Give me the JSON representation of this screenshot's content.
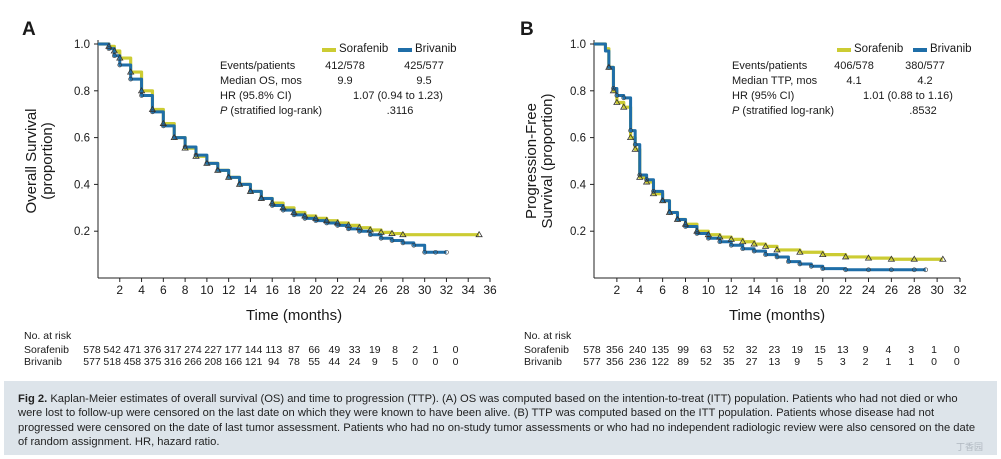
{
  "figure": {
    "caption_label": "Fig 2.",
    "caption_text": "Kaplan-Meier estimates of overall survival (OS) and time to progression (TTP). (A) OS was computed based on the intention-to-treat (ITT) population. Patients who had not died or who were lost to follow-up were censored on the last date on which they were known to have been alive. (B) TTP was computed based on the ITT population. Patients whose disease had not progressed were censored on the date of last tumor assessment. Patients who had no on-study tumor assessments or who had no independent radiologic review were also censored on the date of random assignment. HR, hazard ratio.",
    "colors": {
      "sorafenib": "#cccc33",
      "brivanib": "#1f6ea8",
      "axis": "#222222"
    }
  },
  "chart_data": [
    {
      "panel": "A",
      "type": "line",
      "ylabel": "Overall Survival (proportion)",
      "xlabel": "Time (months)",
      "xlim": [
        0,
        36
      ],
      "ylim": [
        0,
        1.0
      ],
      "xticks": [
        2,
        4,
        6,
        8,
        10,
        12,
        14,
        16,
        18,
        20,
        22,
        24,
        26,
        28,
        30,
        32,
        34,
        36
      ],
      "yticks": [
        0.2,
        0.4,
        0.6,
        0.8,
        1.0
      ],
      "legend": [
        "Sorafenib",
        "Brivanib"
      ],
      "stats": {
        "row_labels": [
          "Events/patients",
          "Median OS, mos",
          "HR (95.8% CI)",
          "P (stratified log-rank)"
        ],
        "events_sorafenib": "412/578",
        "events_brivanib": "425/577",
        "median_sorafenib": "9.9",
        "median_brivanib": "9.5",
        "hr": "1.07 (0.94 to 1.23)",
        "p": ".3116"
      },
      "series": [
        {
          "name": "Sorafenib",
          "x": [
            0,
            0.5,
            1,
            1.5,
            2,
            3,
            4,
            5,
            6,
            7,
            8,
            9,
            10,
            11,
            12,
            13,
            14,
            15,
            16,
            17,
            18,
            19,
            20,
            21,
            22,
            23,
            24,
            25,
            26,
            27,
            28,
            35
          ],
          "y": [
            1.0,
            1.0,
            0.99,
            0.97,
            0.94,
            0.88,
            0.8,
            0.72,
            0.66,
            0.6,
            0.555,
            0.52,
            0.49,
            0.46,
            0.43,
            0.4,
            0.37,
            0.34,
            0.32,
            0.3,
            0.28,
            0.265,
            0.255,
            0.245,
            0.235,
            0.225,
            0.215,
            0.205,
            0.195,
            0.19,
            0.185,
            0.185
          ]
        },
        {
          "name": "Brivanib",
          "x": [
            0,
            0.5,
            1,
            1.5,
            2,
            3,
            4,
            5,
            6,
            7,
            8,
            9,
            10,
            11,
            12,
            13,
            14,
            15,
            16,
            17,
            18,
            19,
            20,
            21,
            22,
            23,
            24,
            25,
            26,
            27,
            28,
            29,
            30,
            31,
            32
          ],
          "y": [
            1.0,
            1.0,
            0.98,
            0.95,
            0.91,
            0.85,
            0.78,
            0.71,
            0.65,
            0.6,
            0.56,
            0.525,
            0.49,
            0.46,
            0.43,
            0.4,
            0.37,
            0.34,
            0.31,
            0.29,
            0.27,
            0.255,
            0.245,
            0.235,
            0.225,
            0.21,
            0.2,
            0.185,
            0.17,
            0.16,
            0.15,
            0.14,
            0.11,
            0.11,
            0.11
          ]
        }
      ],
      "at_risk": {
        "header": "No. at risk",
        "rows": [
          {
            "name": "Sorafenib",
            "values": [
              "578",
              "542",
              "471",
              "376",
              "317",
              "274",
              "227",
              "177",
              "144",
              "113",
              "87",
              "66",
              "49",
              "33",
              "19",
              "8",
              "2",
              "1",
              "0"
            ]
          },
          {
            "name": "Brivanib",
            "values": [
              "577",
              "518",
              "458",
              "375",
              "316",
              "266",
              "208",
              "166",
              "121",
              "94",
              "78",
              "55",
              "44",
              "24",
              "9",
              "5",
              "0",
              "0",
              "0"
            ]
          }
        ]
      }
    },
    {
      "panel": "B",
      "type": "line",
      "ylabel": "Progression-Free Survival (proportion)",
      "xlabel": "Time (months)",
      "xlim": [
        0,
        32
      ],
      "ylim": [
        0,
        1.0
      ],
      "xticks": [
        2,
        4,
        6,
        8,
        10,
        12,
        14,
        16,
        18,
        20,
        22,
        24,
        26,
        28,
        30,
        32
      ],
      "yticks": [
        0.2,
        0.4,
        0.6,
        0.8,
        1.0
      ],
      "legend": [
        "Sorafenib",
        "Brivanib"
      ],
      "stats": {
        "row_labels": [
          "Events/patients",
          "Median TTP, mos",
          "HR (95% CI)",
          "P (stratified log-rank)"
        ],
        "events_sorafenib": "406/578",
        "events_brivanib": "380/577",
        "median_sorafenib": "4.1",
        "median_brivanib": "4.2",
        "hr": "1.01 (0.88 to 1.16)",
        "p": ".8532"
      },
      "series": [
        {
          "name": "Sorafenib",
          "x": [
            0,
            1,
            1.3,
            1.7,
            2,
            2.6,
            3.2,
            3.6,
            4,
            4.6,
            5.2,
            6,
            6.6,
            7.3,
            8,
            9,
            10,
            11,
            12,
            13,
            14,
            15,
            16,
            18,
            20,
            22,
            24,
            26,
            28,
            30.5
          ],
          "y": [
            1.0,
            0.98,
            0.9,
            0.8,
            0.75,
            0.73,
            0.6,
            0.55,
            0.43,
            0.41,
            0.36,
            0.33,
            0.28,
            0.25,
            0.23,
            0.2,
            0.185,
            0.175,
            0.165,
            0.155,
            0.145,
            0.135,
            0.12,
            0.11,
            0.1,
            0.09,
            0.085,
            0.08,
            0.08,
            0.08
          ]
        },
        {
          "name": "Brivanib",
          "x": [
            0,
            1,
            1.3,
            1.7,
            2,
            2.6,
            3.2,
            3.6,
            4,
            4.6,
            5.2,
            6,
            6.6,
            7.3,
            8,
            9,
            10,
            11,
            12,
            13,
            14,
            15,
            16,
            17,
            18,
            19,
            20,
            22,
            24,
            26,
            28,
            29
          ],
          "y": [
            1.0,
            0.97,
            0.9,
            0.81,
            0.78,
            0.77,
            0.63,
            0.57,
            0.44,
            0.42,
            0.37,
            0.33,
            0.28,
            0.25,
            0.22,
            0.19,
            0.17,
            0.155,
            0.14,
            0.125,
            0.115,
            0.1,
            0.09,
            0.07,
            0.06,
            0.05,
            0.04,
            0.035,
            0.035,
            0.035,
            0.035,
            0.035
          ]
        }
      ],
      "at_risk": {
        "header": "No. at risk",
        "rows": [
          {
            "name": "Sorafenib",
            "values": [
              "578",
              "356",
              "240",
              "135",
              "99",
              "63",
              "52",
              "32",
              "23",
              "19",
              "15",
              "13",
              "9",
              "4",
              "3",
              "1",
              "0"
            ]
          },
          {
            "name": "Brivanib",
            "values": [
              "577",
              "356",
              "236",
              "122",
              "89",
              "52",
              "35",
              "27",
              "13",
              "9",
              "5",
              "3",
              "2",
              "1",
              "1",
              "0",
              "0"
            ]
          }
        ]
      }
    }
  ]
}
